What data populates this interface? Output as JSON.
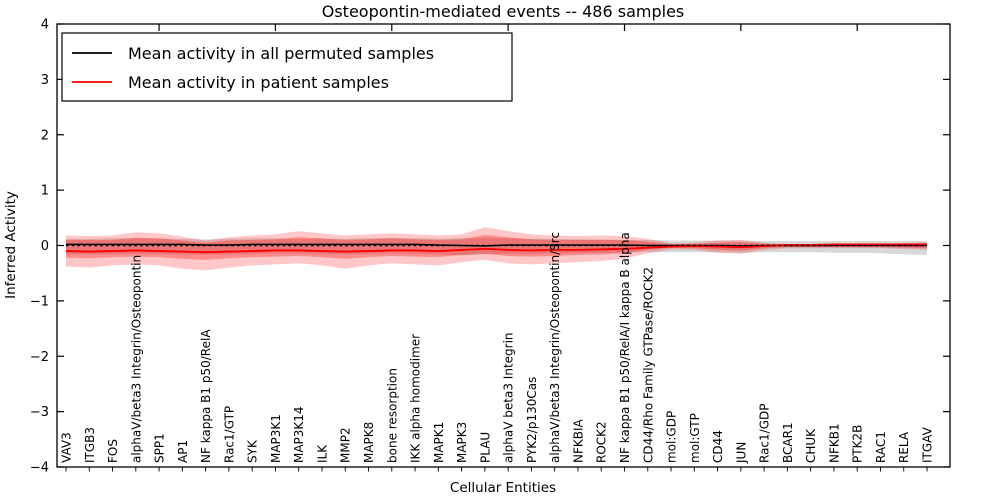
{
  "chart_data": {
    "type": "line",
    "title": "Osteopontin-mediated events -- 486 samples",
    "xlabel": "Cellular Entities",
    "ylabel": "Inferred Activity",
    "ylim": [
      -4,
      4
    ],
    "yticks": [
      4,
      3,
      2,
      1,
      0,
      -1,
      -2,
      -3,
      -4
    ],
    "ytick_labels": [
      "4",
      "3",
      "2",
      "1",
      "0",
      "−1",
      "−2",
      "−3",
      "−4"
    ],
    "baseline": 0,
    "grid": false,
    "legend_position": "upper-left",
    "categories": [
      "VAV3",
      "ITGB3",
      "FOS",
      "alphaV/beta3 Integrin/Osteopontin",
      "SPP1",
      "AP1",
      "NF kappa B1 p50/RelA",
      "Rac1/GTP",
      "SYK",
      "MAP3K1",
      "MAP3K14",
      "ILK",
      "MMP2",
      "MAPK8",
      "bone resorption",
      "IKK alpha homodimer",
      "MAPK1",
      "MAPK3",
      "PLAU",
      "alphaV beta3 Integrin",
      "PYK2/p130Cas",
      "alphaV/beta3 Integrin/Osteopontin/Src",
      "NFKBIA",
      "ROCK2",
      "NF kappa B1 p50/RelA/I kappa B alpha",
      "CD44/Rho Family GTPase/ROCK2",
      "mol:GDP",
      "mol:GTP",
      "CD44",
      "JUN",
      "Rac1/GDP",
      "BCAR1",
      "CHUK",
      "NFKB1",
      "PTK2B",
      "RAC1",
      "RELA",
      "ITGAV"
    ],
    "series": [
      {
        "name": "Mean activity in all permuted samples",
        "color": "#000000",
        "values": [
          0.02,
          0.02,
          0.02,
          0.02,
          0.02,
          0.02,
          0.01,
          0.01,
          0.02,
          0.02,
          0.02,
          0.02,
          0.02,
          0.02,
          0.02,
          0.02,
          0.01,
          0.0,
          -0.01,
          0.01,
          0.01,
          0.01,
          0.01,
          0.01,
          0.01,
          0.0,
          0.0,
          0.0,
          0.0,
          -0.01,
          0.0,
          0.0,
          0.0,
          0.0,
          0.0,
          0.0,
          0.0,
          0.0
        ]
      },
      {
        "name": "Mean activity in patient samples",
        "color": "#ff0000",
        "values": [
          -0.1,
          -0.11,
          -0.1,
          -0.09,
          -0.1,
          -0.11,
          -0.12,
          -0.11,
          -0.1,
          -0.09,
          -0.09,
          -0.1,
          -0.11,
          -0.1,
          -0.09,
          -0.09,
          -0.1,
          -0.08,
          -0.06,
          -0.08,
          -0.09,
          -0.08,
          -0.08,
          -0.07,
          -0.06,
          -0.04,
          -0.02,
          -0.01,
          -0.02,
          -0.03,
          -0.01,
          0.01,
          0.01,
          0.02,
          0.02,
          0.02,
          0.02,
          0.02
        ]
      }
    ],
    "bands": [
      {
        "name": "permuted-sample-range",
        "color": "#999999",
        "opacity": 0.38,
        "upper": [
          0.12,
          0.12,
          0.13,
          0.13,
          0.12,
          0.12,
          0.11,
          0.12,
          0.13,
          0.13,
          0.12,
          0.12,
          0.12,
          0.13,
          0.14,
          0.13,
          0.12,
          0.13,
          0.14,
          0.13,
          0.12,
          0.12,
          0.11,
          0.11,
          0.1,
          0.1,
          0.09,
          0.09,
          0.09,
          0.09,
          0.08,
          0.08,
          0.08,
          0.08,
          0.08,
          0.08,
          0.08,
          0.08
        ],
        "lower": [
          -0.15,
          -0.16,
          -0.15,
          -0.15,
          -0.15,
          -0.16,
          -0.17,
          -0.16,
          -0.15,
          -0.14,
          -0.14,
          -0.15,
          -0.16,
          -0.15,
          -0.14,
          -0.15,
          -0.16,
          -0.18,
          -0.16,
          -0.15,
          -0.15,
          -0.14,
          -0.14,
          -0.13,
          -0.13,
          -0.12,
          -0.12,
          -0.12,
          -0.12,
          -0.13,
          -0.12,
          -0.12,
          -0.12,
          -0.13,
          -0.13,
          -0.14,
          -0.16,
          -0.17
        ]
      },
      {
        "name": "patient-sample-range-outer",
        "color": "#ff0000",
        "opacity": 0.22,
        "upper": [
          0.18,
          0.17,
          0.18,
          0.24,
          0.22,
          0.16,
          0.09,
          0.15,
          0.18,
          0.2,
          0.26,
          0.22,
          0.18,
          0.2,
          0.22,
          0.2,
          0.18,
          0.2,
          0.33,
          0.26,
          0.2,
          0.18,
          0.17,
          0.18,
          0.17,
          0.12,
          0.04,
          0.05,
          0.09,
          0.1,
          0.05,
          0.03,
          0.03,
          0.03,
          0.03,
          0.03,
          0.04,
          0.06
        ],
        "lower": [
          -0.38,
          -0.4,
          -0.36,
          -0.34,
          -0.36,
          -0.42,
          -0.45,
          -0.4,
          -0.36,
          -0.34,
          -0.32,
          -0.36,
          -0.42,
          -0.36,
          -0.32,
          -0.34,
          -0.36,
          -0.3,
          -0.26,
          -0.32,
          -0.34,
          -0.32,
          -0.3,
          -0.28,
          -0.24,
          -0.14,
          -0.07,
          -0.08,
          -0.13,
          -0.15,
          -0.08,
          -0.05,
          -0.05,
          -0.05,
          -0.05,
          -0.05,
          -0.06,
          -0.08
        ]
      },
      {
        "name": "patient-sample-range-inner",
        "color": "#ff0000",
        "opacity": 0.3,
        "upper": [
          0.1,
          0.1,
          0.1,
          0.14,
          0.13,
          0.09,
          0.05,
          0.09,
          0.1,
          0.11,
          0.15,
          0.13,
          0.1,
          0.11,
          0.13,
          0.11,
          0.1,
          0.11,
          0.19,
          0.15,
          0.11,
          0.1,
          0.1,
          0.1,
          0.1,
          0.07,
          0.02,
          0.03,
          0.05,
          0.06,
          0.03,
          0.02,
          0.02,
          0.02,
          0.02,
          0.02,
          0.02,
          0.03
        ],
        "lower": [
          -0.22,
          -0.23,
          -0.21,
          -0.2,
          -0.21,
          -0.24,
          -0.26,
          -0.23,
          -0.21,
          -0.2,
          -0.19,
          -0.21,
          -0.24,
          -0.21,
          -0.19,
          -0.2,
          -0.21,
          -0.17,
          -0.15,
          -0.19,
          -0.2,
          -0.19,
          -0.17,
          -0.16,
          -0.14,
          -0.08,
          -0.04,
          -0.05,
          -0.08,
          -0.09,
          -0.05,
          -0.03,
          -0.03,
          -0.03,
          -0.03,
          -0.03,
          -0.04,
          -0.05
        ]
      }
    ]
  }
}
